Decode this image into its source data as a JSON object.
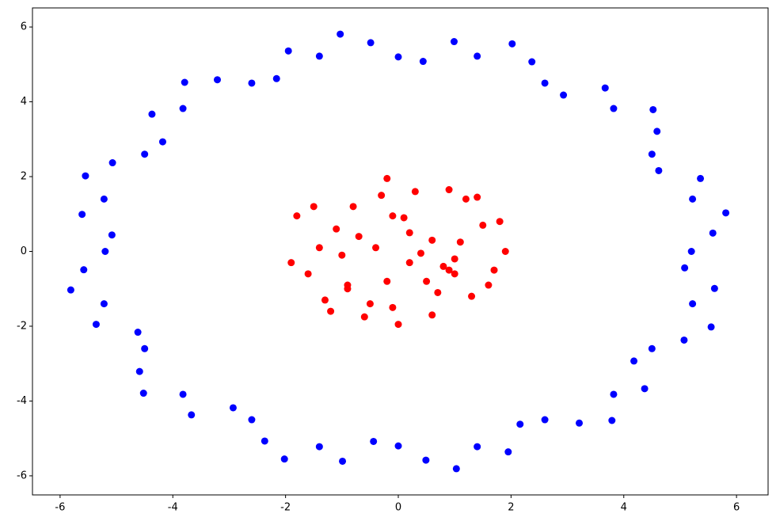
{
  "chart_data": {
    "type": "scatter",
    "xlim": [
      -6.49,
      6.56
    ],
    "ylim": [
      -6.51,
      6.51
    ],
    "xticks": [
      -6,
      -4,
      -2,
      0,
      2,
      4,
      6
    ],
    "yticks": [
      -6,
      -4,
      -2,
      0,
      2,
      4,
      6
    ],
    "series": [
      {
        "color": "#0000ff",
        "x": [
          5.2,
          5.58,
          5.81,
          5.22,
          5.36,
          4.62,
          4.5,
          4.59,
          4.52,
          3.82,
          3.67,
          2.93,
          2.6,
          2.37,
          2.02,
          1.4,
          0.99,
          0.44,
          0,
          -0.49,
          -1.03,
          -1.4,
          -1.95,
          -2.16,
          -2.6,
          -3.21,
          -3.79,
          -3.82,
          -4.37,
          -4.18,
          -4.5,
          -5.07,
          -5.55,
          -5.22,
          -5.61,
          -5.08,
          -5.2,
          -5.58,
          -5.81,
          -5.22,
          -5.36,
          -4.62,
          -4.5,
          -4.59,
          -4.52,
          -3.82,
          -3.67,
          -2.93,
          -2.6,
          -2.37,
          -2.02,
          -1.4,
          -0.99,
          -0.44,
          0,
          0.49,
          1.03,
          1.4,
          1.95,
          2.16,
          2.6,
          3.21,
          3.79,
          3.82,
          4.37,
          4.18,
          4.5,
          5.07,
          5.55,
          5.22,
          5.61,
          5.08
        ],
        "y": [
          0,
          0.49,
          1.03,
          1.4,
          1.95,
          2.16,
          2.6,
          3.21,
          3.79,
          3.82,
          4.37,
          4.18,
          4.5,
          5.07,
          5.55,
          5.22,
          5.61,
          5.08,
          5.2,
          5.58,
          5.81,
          5.22,
          5.36,
          4.62,
          4.5,
          4.59,
          4.52,
          3.82,
          3.67,
          2.93,
          2.6,
          2.37,
          2.02,
          1.4,
          0.99,
          0.44,
          0,
          -0.49,
          -1.03,
          -1.4,
          -1.95,
          -2.16,
          -2.6,
          -3.21,
          -3.79,
          -3.82,
          -4.37,
          -4.18,
          -4.5,
          -5.07,
          -5.55,
          -5.22,
          -5.61,
          -5.08,
          -5.2,
          -5.58,
          -5.81,
          -5.22,
          -5.36,
          -4.62,
          -4.5,
          -4.59,
          -4.52,
          -3.82,
          -3.67,
          -2.93,
          -2.6,
          -2.37,
          -2.02,
          -1.4,
          -0.99,
          -0.44
        ]
      },
      {
        "color": "#ff0000",
        "x": [
          -0.2,
          0.3,
          1.2,
          -1.5,
          -1.8,
          0.9,
          1.9,
          -0.8,
          0.1,
          0.6,
          -1.1,
          1.5,
          -0.4,
          0.8,
          -1.6,
          1.7,
          -0.9,
          0.2,
          1.0,
          -1.3,
          0.5,
          -0.1,
          1.3,
          -0.6,
          -1.9,
          1.8,
          0.0,
          -1.0,
          0.7,
          -0.3,
          1.1,
          -1.4,
          0.4,
          1.6,
          -0.7,
          -0.2,
          0.9,
          -1.2,
          0.2,
          1.4,
          -0.5,
          0.6,
          -0.1,
          1.0,
          -0.9
        ],
        "y": [
          1.95,
          1.6,
          1.4,
          1.2,
          0.95,
          1.65,
          0.0,
          1.2,
          0.9,
          0.3,
          0.6,
          0.7,
          0.1,
          -0.4,
          -0.6,
          -0.5,
          -0.9,
          -0.3,
          -0.2,
          -1.3,
          -0.8,
          -1.5,
          -1.2,
          -1.75,
          -0.3,
          0.8,
          -1.95,
          -0.1,
          -1.1,
          1.5,
          0.25,
          0.1,
          -0.05,
          -0.9,
          0.4,
          -0.8,
          -0.5,
          -1.6,
          0.5,
          1.45,
          -1.4,
          -1.7,
          0.95,
          -0.6,
          -1.0
        ]
      }
    ]
  }
}
